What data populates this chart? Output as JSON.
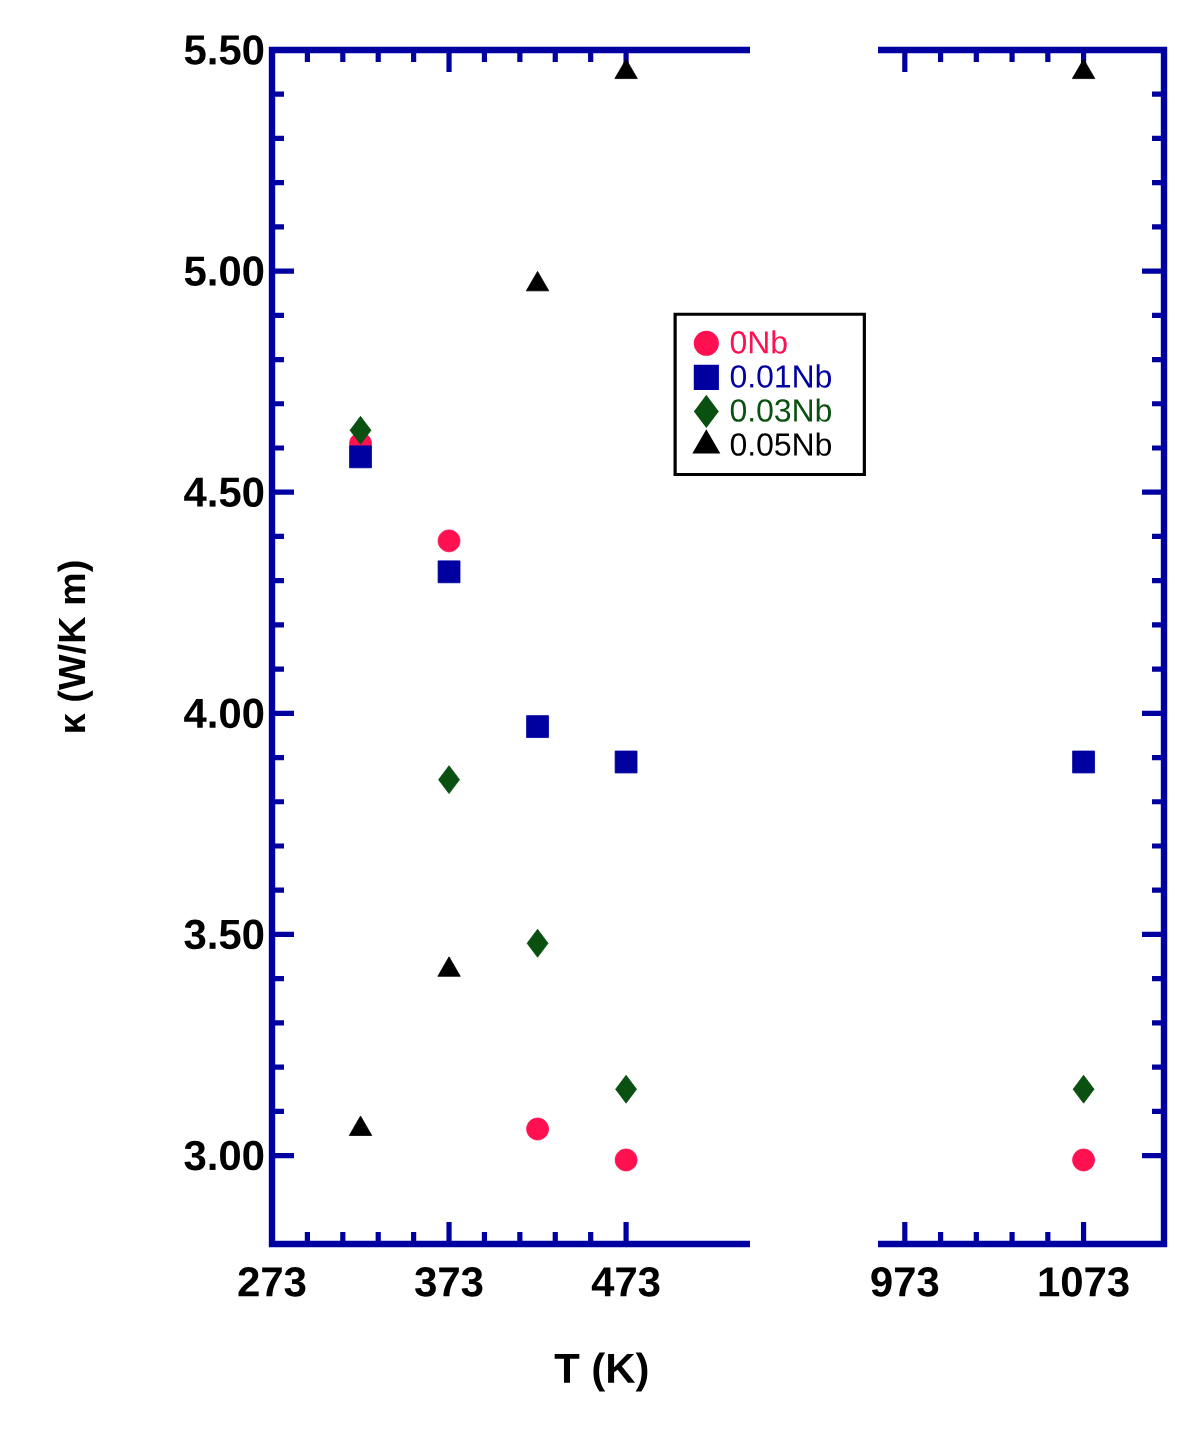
{
  "chart_data": [
    {
      "type": "scatter",
      "xlabel": "T (K)",
      "ylabel": "κ (W/K m)",
      "xlim": [
        273,
        543
      ],
      "xticks": [
        273,
        373,
        473
      ],
      "ylim": [
        2.8,
        5.5
      ],
      "yticks": [
        {
          "value": 3,
          "label": "3.00"
        },
        {
          "value": 3.5,
          "label": "3.50"
        },
        {
          "value": 4,
          "label": "4.00"
        },
        {
          "value": 4.5,
          "label": "4.50"
        },
        {
          "value": 5,
          "label": "5.00"
        },
        {
          "value": 5.5,
          "label": "5.50"
        }
      ],
      "legend": "top right",
      "series": [
        {
          "name": "0Nb",
          "color": "#ff1050",
          "marker": "circle",
          "x": [
            323,
            373,
            423,
            473
          ],
          "values": [
            4.61,
            4.39,
            3.06,
            2.99
          ]
        },
        {
          "name": "0.01Nb",
          "color": "#0000a0",
          "marker": "square",
          "x": [
            323,
            373,
            423,
            473
          ],
          "values": [
            4.58,
            4.32,
            3.97,
            3.89
          ]
        },
        {
          "name": "0.03Nb",
          "color": "#0a5010",
          "marker": "diamond",
          "x": [
            323,
            373,
            423,
            473
          ],
          "values": [
            4.64,
            3.85,
            3.48,
            3.15
          ]
        },
        {
          "name": "0.05Nb",
          "color": "#000000",
          "marker": "triangle",
          "x": [
            323,
            373,
            423,
            473
          ],
          "values": [
            3.06,
            3.42,
            4.97,
            5.45
          ]
        }
      ]
    },
    {
      "type": "scatter",
      "xlim": [
        958,
        1118
      ],
      "xticks": [
        973,
        1073
      ],
      "ylim": [
        2.8,
        5.5
      ],
      "yticks": [
        {
          "value": 3,
          "label": null
        },
        {
          "value": 3.5,
          "label": null
        },
        {
          "value": 4,
          "label": null
        },
        {
          "value": 4.5,
          "label": null
        },
        {
          "value": 5,
          "label": null
        },
        {
          "value": 5.5,
          "label": null
        }
      ],
      "tick_labels": "x",
      "series": [
        {
          "color": "#ff1050",
          "marker": "circle",
          "x": [
            1073
          ],
          "values": [
            2.99
          ]
        },
        {
          "color": "#0000a0",
          "marker": "square",
          "x": [
            1073
          ],
          "values": [
            3.89
          ]
        },
        {
          "color": "#0a5010",
          "marker": "diamond",
          "x": [
            1073
          ],
          "values": [
            3.15
          ]
        },
        {
          "color": "#000000",
          "marker": "triangle",
          "x": [
            1073
          ],
          "values": [
            5.45
          ]
        }
      ]
    }
  ]
}
